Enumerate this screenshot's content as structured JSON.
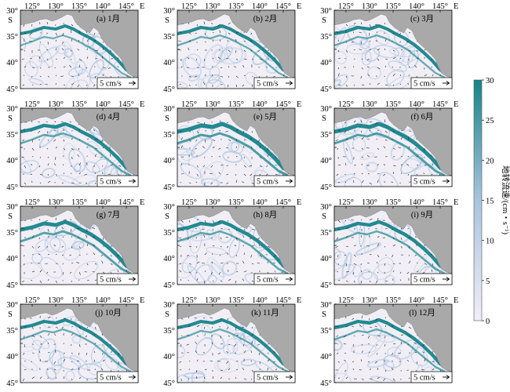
{
  "figure": {
    "colorbar": {
      "title": "地转流速/(cm・s⁻¹)",
      "ticks": [
        "30",
        "25",
        "20",
        "15",
        "10",
        "5",
        "0"
      ],
      "color_low": "#f1eef6",
      "color_mid": "#a9c4de",
      "color_high": "#16848a"
    },
    "axes": {
      "x_ticks": [
        "125°",
        "130°",
        "135°",
        "140°",
        "145°"
      ],
      "x_unit": "E",
      "y_ticks": [
        "30°",
        "35°",
        "40°",
        "45°"
      ],
      "y_unit": "S"
    },
    "land_color": "#a9a9a9",
    "scale_bar_label": "5 cm/s",
    "panels": [
      {
        "label": "(a) 1月",
        "intensity": 0.55
      },
      {
        "label": "(b) 2月",
        "intensity": 0.6
      },
      {
        "label": "(c) 3月",
        "intensity": 0.6
      },
      {
        "label": "(d) 4月",
        "intensity": 0.7
      },
      {
        "label": "(e) 5月",
        "intensity": 0.9
      },
      {
        "label": "(f) 6月",
        "intensity": 0.85
      },
      {
        "label": "(g) 7月",
        "intensity": 0.8
      },
      {
        "label": "(h) 8月",
        "intensity": 0.7
      },
      {
        "label": "(i) 9月",
        "intensity": 0.7
      },
      {
        "label": "(j) 10月",
        "intensity": 0.6
      },
      {
        "label": "(k) 11月",
        "intensity": 0.6
      },
      {
        "label": "(l) 12月",
        "intensity": 0.65
      }
    ]
  }
}
